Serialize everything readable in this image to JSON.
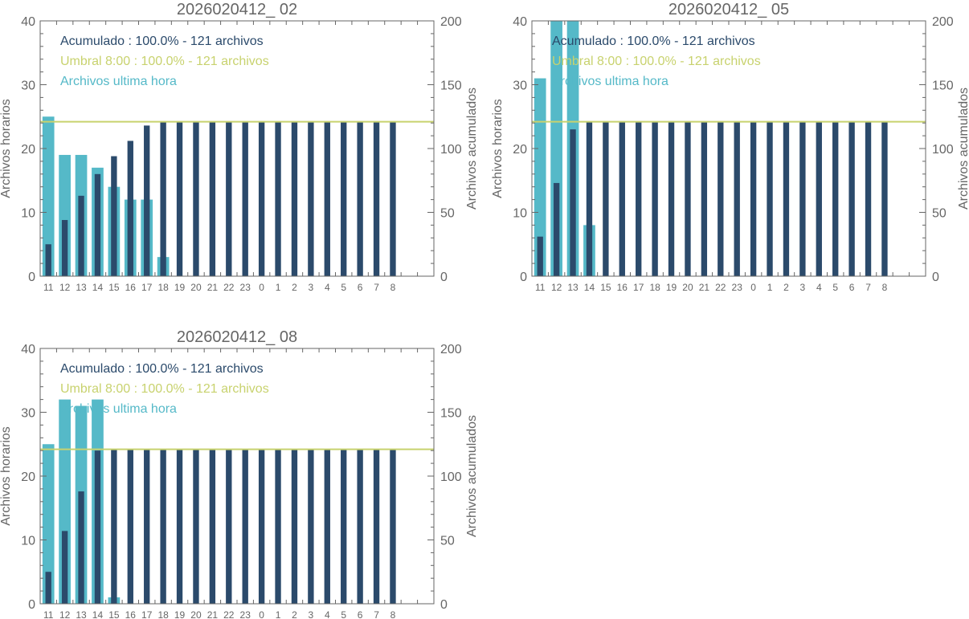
{
  "colors": {
    "hourly": "#55b9c8",
    "cumulative": "#2b4a6b",
    "threshold": "#c8d26e",
    "axis": "#666666",
    "title": "#666666"
  },
  "legend_labels": {
    "cumulative": "Acumulado : 100.0% - 121 archivos",
    "threshold": "Umbral 8:00 : 100.0% - 121 archivos",
    "hourly": "Archivos ultima hora"
  },
  "axis_labels": {
    "left": "Archivos horarios",
    "right": "Archivos acumulados"
  },
  "chart_data": [
    {
      "type": "bar",
      "title": "2026020412_ 02",
      "categories": [
        "11",
        "12",
        "13",
        "14",
        "15",
        "16",
        "17",
        "18",
        "19",
        "20",
        "21",
        "22",
        "23",
        "0",
        "1",
        "2",
        "3",
        "4",
        "5",
        "6",
        "7",
        "8"
      ],
      "ylim_left": [
        0,
        40
      ],
      "ylim_right": [
        0,
        200
      ],
      "yticks_left": [
        0,
        10,
        20,
        30,
        40
      ],
      "yticks_right": [
        0,
        50,
        100,
        150,
        200
      ],
      "threshold": 121,
      "series": [
        {
          "key": "hourly",
          "axis": "left",
          "values": [
            25,
            19,
            19,
            17,
            14,
            12,
            12,
            3,
            0,
            0,
            0,
            0,
            0,
            0,
            0,
            0,
            0,
            0,
            0,
            0,
            0,
            0
          ]
        },
        {
          "key": "cumulative",
          "axis": "right",
          "values": [
            25,
            44,
            63,
            80,
            94,
            106,
            118,
            121,
            121,
            121,
            121,
            121,
            121,
            121,
            121,
            121,
            121,
            121,
            121,
            121,
            121,
            121
          ]
        }
      ]
    },
    {
      "type": "bar",
      "title": "2026020412_ 05",
      "categories": [
        "11",
        "12",
        "13",
        "14",
        "15",
        "16",
        "17",
        "18",
        "19",
        "20",
        "21",
        "22",
        "23",
        "0",
        "1",
        "2",
        "3",
        "4",
        "5",
        "6",
        "7",
        "8"
      ],
      "ylim_left": [
        0,
        40
      ],
      "ylim_right": [
        0,
        200
      ],
      "yticks_left": [
        0,
        10,
        20,
        30,
        40
      ],
      "yticks_right": [
        0,
        50,
        100,
        150,
        200
      ],
      "threshold": 121,
      "series": [
        {
          "key": "hourly",
          "axis": "left",
          "values": [
            31,
            42,
            42,
            8,
            0,
            0,
            0,
            0,
            0,
            0,
            0,
            0,
            0,
            0,
            0,
            0,
            0,
            0,
            0,
            0,
            0,
            0
          ]
        },
        {
          "key": "cumulative",
          "axis": "right",
          "values": [
            31,
            73,
            115,
            121,
            121,
            121,
            121,
            121,
            121,
            121,
            121,
            121,
            121,
            121,
            121,
            121,
            121,
            121,
            121,
            121,
            121,
            121
          ]
        }
      ]
    },
    {
      "type": "bar",
      "title": "2026020412_ 08",
      "categories": [
        "11",
        "12",
        "13",
        "14",
        "15",
        "16",
        "17",
        "18",
        "19",
        "20",
        "21",
        "22",
        "23",
        "0",
        "1",
        "2",
        "3",
        "4",
        "5",
        "6",
        "7",
        "8"
      ],
      "ylim_left": [
        0,
        40
      ],
      "ylim_right": [
        0,
        200
      ],
      "yticks_left": [
        0,
        10,
        20,
        30,
        40
      ],
      "yticks_right": [
        0,
        50,
        100,
        150,
        200
      ],
      "threshold": 121,
      "series": [
        {
          "key": "hourly",
          "axis": "left",
          "values": [
            25,
            32,
            31,
            32,
            1,
            0,
            0,
            0,
            0,
            0,
            0,
            0,
            0,
            0,
            0,
            0,
            0,
            0,
            0,
            0,
            0,
            0
          ]
        },
        {
          "key": "cumulative",
          "axis": "right",
          "values": [
            25,
            57,
            88,
            120,
            121,
            121,
            121,
            121,
            121,
            121,
            121,
            121,
            121,
            121,
            121,
            121,
            121,
            121,
            121,
            121,
            121,
            121
          ]
        }
      ]
    }
  ]
}
